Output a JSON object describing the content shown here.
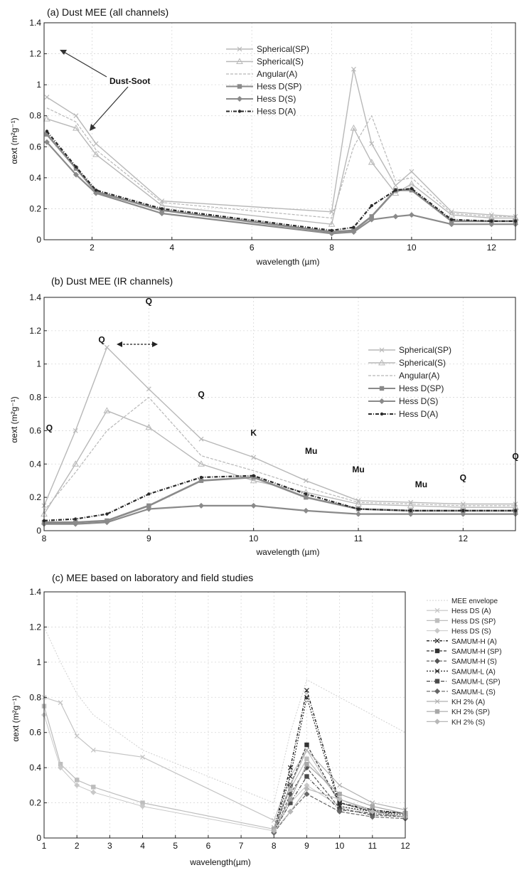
{
  "charts": [
    {
      "id": "a",
      "chart_data": {
        "type": "line",
        "title": "(a) Dust MEE (all channels)",
        "xlabel": "wavelength (µm)",
        "ylabel": "αext (m²g⁻¹)",
        "xlim": [
          0.8,
          12.6
        ],
        "ylim": [
          0,
          1.4
        ],
        "xticks": [
          "2",
          "4",
          "6",
          "8",
          "10",
          "12"
        ],
        "yticks": [
          "0",
          "0.2",
          "0.4",
          "0.6",
          "0.8",
          "1",
          "1.2",
          "1.4"
        ],
        "grid": true,
        "legend_position": "top-center",
        "annotations": [
          "Dust-Soot"
        ],
        "x": [
          0.87,
          1.6,
          2.1,
          3.75,
          8.0,
          8.55,
          9.0,
          9.6,
          10.0,
          11.0,
          12.0,
          12.6
        ],
        "series": [
          {
            "name": "Spherical(SP)",
            "values": [
              0.92,
              0.8,
              0.62,
              0.25,
              0.18,
              1.1,
              0.62,
              0.35,
              0.44,
              0.18,
              0.16,
              0.15
            ]
          },
          {
            "name": "Spherical(S)",
            "values": [
              0.78,
              0.72,
              0.55,
              0.22,
              0.1,
              0.72,
              0.5,
              0.3,
              0.36,
              0.16,
              0.14,
              0.14
            ]
          },
          {
            "name": "Angular(A)",
            "values": [
              0.85,
              0.76,
              0.58,
              0.24,
              0.14,
              0.6,
              0.8,
              0.38,
              0.4,
              0.17,
              0.15,
              0.15
            ]
          },
          {
            "name": "Hess D(SP)",
            "values": [
              0.68,
              0.46,
              0.31,
              0.19,
              0.05,
              0.06,
              0.15,
              0.32,
              0.32,
              0.12,
              0.12,
              0.12
            ]
          },
          {
            "name": "Hess D(S)",
            "values": [
              0.63,
              0.42,
              0.3,
              0.17,
              0.04,
              0.05,
              0.13,
              0.15,
              0.16,
              0.1,
              0.1,
              0.1
            ]
          },
          {
            "name": "Hess D(A)",
            "values": [
              0.7,
              0.47,
              0.32,
              0.2,
              0.06,
              0.08,
              0.22,
              0.32,
              0.33,
              0.13,
              0.12,
              0.12
            ]
          }
        ]
      }
    },
    {
      "id": "b",
      "chart_data": {
        "type": "line",
        "title": "(b) Dust MEE (IR channels)",
        "xlabel": "wavelength (µm)",
        "ylabel": "αext (m²g⁻¹)",
        "xlim": [
          8,
          12.5
        ],
        "ylim": [
          0,
          1.4
        ],
        "xticks": [
          "8",
          "9",
          "10",
          "11",
          "12"
        ],
        "yticks": [
          "0",
          "0.2",
          "0.4",
          "0.6",
          "0.8",
          "1",
          "1.2",
          "1.4"
        ],
        "grid": true,
        "legend_position": "right",
        "annotations": [
          {
            "text": "Q",
            "x": 9.0,
            "y": 1.36
          },
          {
            "text": "Q",
            "x": 8.55,
            "y": 1.13
          },
          {
            "text": "Q",
            "x": 9.5,
            "y": 0.8
          },
          {
            "text": "K",
            "x": 10.0,
            "y": 0.57
          },
          {
            "text": "Mu",
            "x": 10.55,
            "y": 0.46
          },
          {
            "text": "Mu",
            "x": 11.0,
            "y": 0.35
          },
          {
            "text": "Mu",
            "x": 11.6,
            "y": 0.26
          },
          {
            "text": "Q",
            "x": 12.0,
            "y": 0.3
          },
          {
            "text": "Q",
            "x": 12.5,
            "y": 0.43
          },
          {
            "text": "Q",
            "x": 8.05,
            "y": 0.6
          }
        ],
        "x": [
          8.0,
          8.3,
          8.6,
          9.0,
          9.5,
          10.0,
          10.5,
          11.0,
          11.5,
          12.0,
          12.5
        ],
        "series": [
          {
            "name": "Spherical(SP)",
            "values": [
              0.15,
              0.6,
              1.1,
              0.85,
              0.55,
              0.44,
              0.3,
              0.18,
              0.17,
              0.16,
              0.16
            ]
          },
          {
            "name": "Spherical(S)",
            "values": [
              0.1,
              0.4,
              0.72,
              0.62,
              0.4,
              0.3,
              0.23,
              0.16,
              0.15,
              0.14,
              0.14
            ]
          },
          {
            "name": "Angular(A)",
            "values": [
              0.12,
              0.35,
              0.6,
              0.8,
              0.45,
              0.36,
              0.26,
              0.17,
              0.16,
              0.15,
              0.15
            ]
          },
          {
            "name": "Hess D(SP)",
            "values": [
              0.05,
              0.05,
              0.06,
              0.15,
              0.3,
              0.32,
              0.2,
              0.13,
              0.12,
              0.12,
              0.12
            ]
          },
          {
            "name": "Hess D(S)",
            "values": [
              0.04,
              0.04,
              0.05,
              0.13,
              0.15,
              0.15,
              0.12,
              0.1,
              0.1,
              0.1,
              0.1
            ]
          },
          {
            "name": "Hess D(A)",
            "values": [
              0.06,
              0.07,
              0.1,
              0.22,
              0.32,
              0.33,
              0.22,
              0.13,
              0.12,
              0.12,
              0.12
            ]
          }
        ]
      }
    },
    {
      "id": "c",
      "chart_data": {
        "type": "line",
        "title": "(c)  MEE based on laboratory and field studies",
        "xlabel": "wavelength(µm)",
        "ylabel": "αext (m²g⁻¹)",
        "xlim": [
          1,
          12
        ],
        "ylim": [
          0,
          1.4
        ],
        "xticks": [
          "1",
          "2",
          "3",
          "4",
          "5",
          "6",
          "7",
          "8",
          "9",
          "10",
          "11",
          "12"
        ],
        "yticks": [
          "0",
          "0.2",
          "0.4",
          "0.6",
          "0.8",
          "1",
          "1.2",
          "1.4"
        ],
        "grid": true,
        "legend_position": "outside-right",
        "x": [
          1.0,
          1.5,
          2.0,
          2.5,
          4.0,
          8.0,
          8.5,
          9.0,
          10.0,
          11.0,
          12.0
        ],
        "series": [
          {
            "name": "MEE envelope",
            "values": [
              1.2,
              1.0,
              0.82,
              0.7,
              0.5,
              0.2,
              0.6,
              0.9,
              0.8,
              0.7,
              0.6
            ]
          },
          {
            "name": "Hess DS (A)",
            "values": [
              0.8,
              0.77,
              0.58,
              0.5,
              0.46,
              0.1,
              0.35,
              0.5,
              0.2,
              0.15,
              0.14
            ]
          },
          {
            "name": "Hess DS (SP)",
            "values": [
              0.75,
              0.42,
              0.33,
              0.29,
              0.2,
              0.05,
              0.28,
              0.45,
              0.22,
              0.16,
              0.14
            ]
          },
          {
            "name": "Hess DS (S)",
            "values": [
              0.7,
              0.4,
              0.3,
              0.26,
              0.18,
              0.04,
              0.2,
              0.3,
              0.18,
              0.14,
              0.12
            ]
          },
          {
            "name": "SAMUM-H (A)",
            "values": [
              null,
              null,
              null,
              null,
              null,
              0.05,
              0.4,
              0.84,
              0.2,
              0.16,
              0.14
            ]
          },
          {
            "name": "SAMUM-H (SP)",
            "values": [
              null,
              null,
              null,
              null,
              null,
              0.04,
              0.3,
              0.53,
              0.2,
              0.15,
              0.14
            ]
          },
          {
            "name": "SAMUM-H (S)",
            "values": [
              null,
              null,
              null,
              null,
              null,
              0.03,
              0.25,
              0.4,
              0.17,
              0.13,
              0.12
            ]
          },
          {
            "name": "SAMUM-L (A)",
            "values": [
              null,
              null,
              null,
              null,
              null,
              0.05,
              0.35,
              0.8,
              0.18,
              0.15,
              0.13
            ]
          },
          {
            "name": "SAMUM-L (SP)",
            "values": [
              null,
              null,
              null,
              null,
              null,
              0.04,
              0.2,
              0.35,
              0.16,
              0.14,
              0.12
            ]
          },
          {
            "name": "SAMUM-L (S)",
            "values": [
              null,
              null,
              null,
              null,
              null,
              0.03,
              0.15,
              0.25,
              0.15,
              0.12,
              0.11
            ]
          },
          {
            "name": "KH 2% (A)",
            "values": [
              null,
              null,
              null,
              null,
              null,
              0.06,
              0.3,
              0.5,
              0.3,
              0.2,
              0.16
            ]
          },
          {
            "name": "KH 2% (SP)",
            "values": [
              null,
              null,
              null,
              null,
              null,
              0.05,
              0.22,
              0.42,
              0.25,
              0.18,
              0.14
            ]
          },
          {
            "name": "KH 2% (S)",
            "values": [
              null,
              null,
              null,
              null,
              null,
              0.04,
              0.15,
              0.28,
              0.22,
              0.15,
              0.12
            ]
          }
        ]
      }
    }
  ],
  "colors": {
    "grid": "#d8d8d8",
    "axis": "#222222",
    "light": "#b8b8b8",
    "mid": "#8a8a8a",
    "dark": "#2a2a2a"
  }
}
